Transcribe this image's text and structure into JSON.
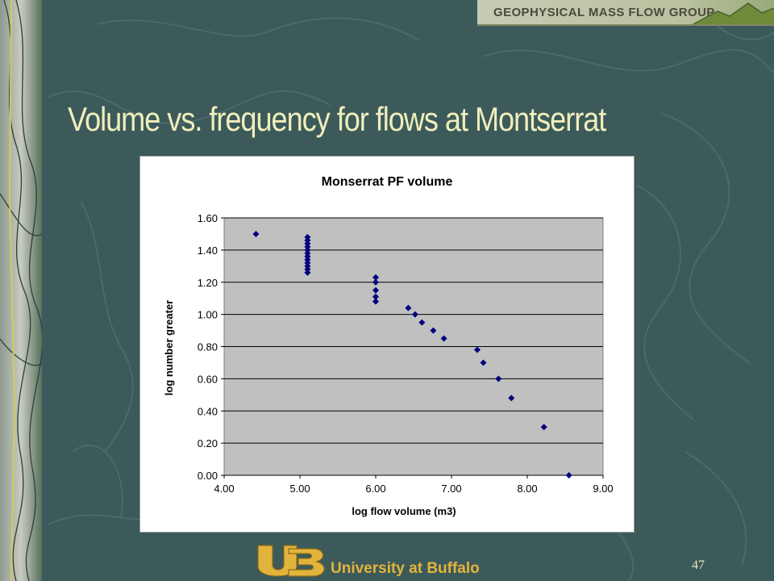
{
  "header": {
    "group_name": "GEOPHYSICAL MASS FLOW GROUP"
  },
  "slide": {
    "title": "Volume vs. frequency for flows at Montserrat",
    "page_number": "47"
  },
  "footer": {
    "university": "University at Buffalo"
  },
  "colors": {
    "background": "#3c5a5a",
    "title": "#f0eebc",
    "plot_area": "#c0c0c0",
    "marker": "#00007f",
    "ub_gold": "#e3b43c"
  },
  "chart_data": {
    "type": "scatter",
    "title": "Monserrat PF volume",
    "xlabel": "log flow volume (m3)",
    "ylabel": "log number greater",
    "xlim": [
      4.0,
      9.0
    ],
    "ylim": [
      0.0,
      1.6
    ],
    "xticks": [
      "4.00",
      "5.00",
      "6.00",
      "7.00",
      "8.00",
      "9.00"
    ],
    "yticks": [
      "0.00",
      "0.20",
      "0.40",
      "0.60",
      "0.80",
      "1.00",
      "1.20",
      "1.40",
      "1.60"
    ],
    "grid": "horizontal",
    "legend": "none",
    "marker": "diamond",
    "x": [
      4.42,
      5.1,
      5.1,
      5.1,
      5.1,
      5.1,
      5.1,
      5.1,
      5.1,
      5.1,
      5.1,
      5.1,
      5.1,
      5.1,
      6.0,
      6.0,
      6.0,
      6.0,
      6.0,
      6.43,
      6.52,
      6.61,
      6.76,
      6.9,
      7.34,
      7.42,
      7.62,
      7.79,
      8.22,
      8.55
    ],
    "y": [
      1.5,
      1.48,
      1.46,
      1.44,
      1.42,
      1.4,
      1.38,
      1.36,
      1.34,
      1.32,
      1.3,
      1.28,
      1.26,
      1.26,
      1.23,
      1.2,
      1.15,
      1.11,
      1.08,
      1.04,
      1.0,
      0.95,
      0.9,
      0.85,
      0.78,
      0.7,
      0.6,
      0.48,
      0.3,
      0.0
    ]
  }
}
